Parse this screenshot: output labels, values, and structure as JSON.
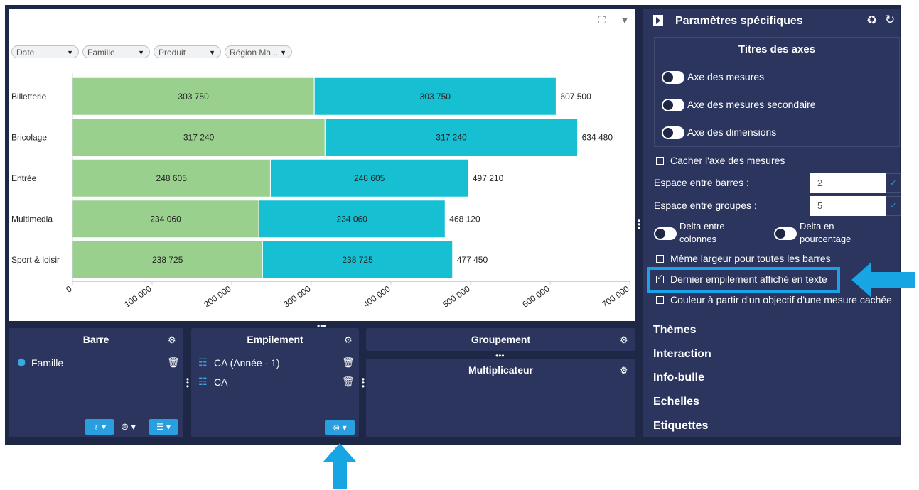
{
  "filters": [
    "Date",
    "Famille",
    "Produit",
    "Région Ma..."
  ],
  "chart_data": {
    "type": "bar",
    "orientation": "horizontal",
    "stacked": true,
    "categories": [
      "Billetterie",
      "Bricolage",
      "Entrée",
      "Multimedia",
      "Sport & loisir"
    ],
    "series": [
      {
        "values": [
          303750,
          317240,
          248605,
          234060,
          238725
        ],
        "color": "#9ad08e"
      },
      {
        "values": [
          303750,
          317240,
          248605,
          234060,
          238725
        ],
        "color": "#17bfd2"
      }
    ],
    "value_labels": [
      [
        "303 750",
        "317 240",
        "248 605",
        "234 060",
        "238 725"
      ],
      [
        "303 750",
        "317 240",
        "248 605",
        "234 060",
        "238 725"
      ]
    ],
    "totals": [
      "607 500",
      "634 480",
      "497 210",
      "468 120",
      "477 450"
    ],
    "xlim": [
      0,
      700000
    ],
    "xticks": [
      "0",
      "100 000",
      "200 000",
      "300 000",
      "400 000",
      "500 000",
      "600 000",
      "700 000"
    ],
    "grid": false
  },
  "panels": {
    "barre": {
      "title": "Barre",
      "items": [
        "Famille"
      ]
    },
    "empilement": {
      "title": "Empilement",
      "items": [
        "CA (Année - 1)",
        "CA"
      ]
    },
    "groupement": {
      "title": "Groupement"
    },
    "multiplicateur": {
      "title": "Multiplicateur"
    }
  },
  "settings": {
    "title": "Paramètres spécifiques",
    "axes_title": "Titres des axes",
    "axes_toggles": [
      "Axe des mesures",
      "Axe des mesures secondaire",
      "Axe des dimensions"
    ],
    "hide_measure_axis": "Cacher l'axe des mesures",
    "bar_space_label": "Espace entre barres :",
    "bar_space_value": "2",
    "group_space_label": "Espace entre groupes :",
    "group_space_value": "5",
    "delta_cols": [
      "Delta entre",
      "colonnes"
    ],
    "delta_pct": [
      "Delta en",
      "pourcentage"
    ],
    "same_width": "Même largeur pour toutes les barres",
    "last_stack_text": "Dernier empilement affiché en texte",
    "color_from_objective": "Couleur à partir d'un objectif d'une mesure cachée",
    "menu": [
      "Thèmes",
      "Interaction",
      "Info-bulle",
      "Echelles",
      "Etiquettes"
    ]
  },
  "colors": {
    "frame": "#1f2747",
    "panel": "#2b355e",
    "accent": "#1aa3e8",
    "arrow": "#17a6e3"
  }
}
